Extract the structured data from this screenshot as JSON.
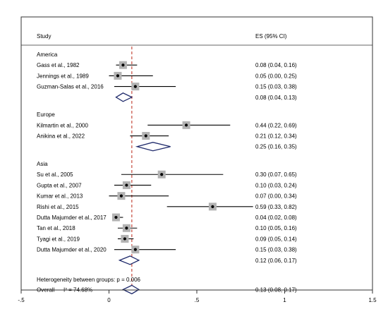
{
  "chart_data": {
    "type": "forest",
    "title": "",
    "xlabel": "",
    "ylabel": "",
    "xlim": [
      -0.5,
      1.5
    ],
    "x_ticks": [
      {
        "value": -0.5,
        "label": "-.5"
      },
      {
        "value": 0,
        "label": "0"
      },
      {
        "value": 0.5,
        "label": ".5"
      },
      {
        "value": 1,
        "label": "1"
      },
      {
        "value": 1.5,
        "label": "1.5"
      }
    ],
    "reference_line": 0.13,
    "headers": {
      "study": "Study",
      "es": "ES (95% CI)"
    },
    "groups": [
      {
        "name": "America",
        "studies": [
          {
            "label": "Gass et al., 1982",
            "es": 0.08,
            "lo": 0.04,
            "hi": 0.16,
            "text": "0.08 (0.04, 0.16)"
          },
          {
            "label": "Jennings et al., 1989",
            "es": 0.05,
            "lo": 0.0,
            "hi": 0.25,
            "text": "0.05 (0.00, 0.25)"
          },
          {
            "label": "Guzman-Salas et al., 2016",
            "es": 0.15,
            "lo": 0.03,
            "hi": 0.38,
            "text": "0.15 (0.03, 0.38)"
          }
        ],
        "pooled": {
          "es": 0.08,
          "lo": 0.04,
          "hi": 0.13,
          "text": "0.08 (0.04, 0.13)"
        }
      },
      {
        "name": "Europe",
        "studies": [
          {
            "label": "Kilmartin et al., 2000",
            "es": 0.44,
            "lo": 0.22,
            "hi": 0.69,
            "text": "0.44 (0.22, 0.69)"
          },
          {
            "label": "Anikina et al., 2022",
            "es": 0.21,
            "lo": 0.12,
            "hi": 0.34,
            "text": "0.21 (0.12, 0.34)"
          }
        ],
        "pooled": {
          "es": 0.25,
          "lo": 0.16,
          "hi": 0.35,
          "text": "0.25 (0.16, 0.35)"
        }
      },
      {
        "name": "Asia",
        "studies": [
          {
            "label": "Su et al., 2005",
            "es": 0.3,
            "lo": 0.07,
            "hi": 0.65,
            "text": "0.30 (0.07, 0.65)"
          },
          {
            "label": "Gupta et al., 2007",
            "es": 0.1,
            "lo": 0.03,
            "hi": 0.24,
            "text": "0.10 (0.03, 0.24)"
          },
          {
            "label": "Kumar et al., 2013",
            "es": 0.07,
            "lo": 0.0,
            "hi": 0.34,
            "text": "0.07 (0.00, 0.34)"
          },
          {
            "label": "Rishi et al., 2015",
            "es": 0.59,
            "lo": 0.33,
            "hi": 0.82,
            "text": "0.59 (0.33, 0.82)"
          },
          {
            "label": "Dutta Majumder et al., 2017",
            "es": 0.04,
            "lo": 0.02,
            "hi": 0.08,
            "text": "0.04 (0.02, 0.08)"
          },
          {
            "label": "Tan et al., 2018",
            "es": 0.1,
            "lo": 0.05,
            "hi": 0.16,
            "text": "0.10 (0.05, 0.16)"
          },
          {
            "label": "Tyagi et al., 2019",
            "es": 0.09,
            "lo": 0.05,
            "hi": 0.14,
            "text": "0.09 (0.05, 0.14)"
          },
          {
            "label": "Dutta Majumder et al., 2020",
            "es": 0.15,
            "lo": 0.03,
            "hi": 0.38,
            "text": "0.15 (0.03, 0.38)"
          }
        ],
        "pooled": {
          "es": 0.12,
          "lo": 0.06,
          "hi": 0.17,
          "text": "0.12 (0.06, 0.17)"
        }
      }
    ],
    "heterogeneity_text": "Heterogeneity between groups: p = 0.006",
    "overall": {
      "label": "Overall",
      "i2_text": "I² = 74.68%",
      "es": 0.13,
      "lo": 0.08,
      "hi": 0.17,
      "text": "0.13 (0.08, 0.17)"
    },
    "colors": {
      "diamond": "#1f2a6b",
      "reference": "#c0392b",
      "box": "#b3b3b3",
      "frame": "#333333"
    }
  }
}
